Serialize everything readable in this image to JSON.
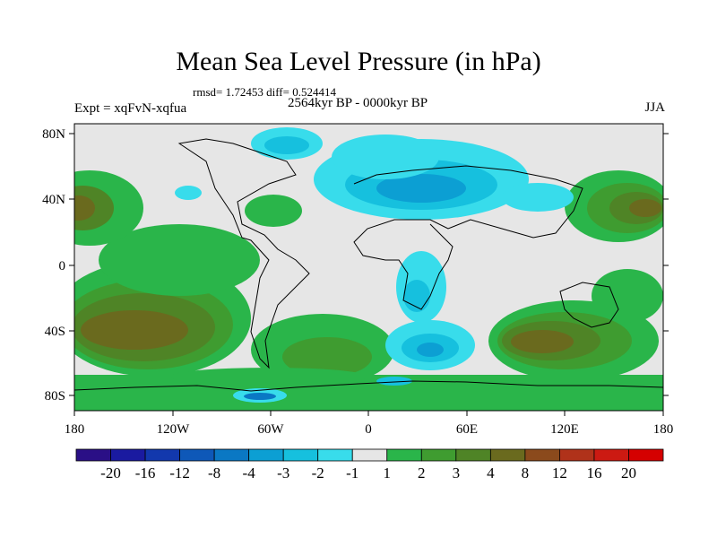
{
  "title": "Mean Sea Level Pressure (in hPa)",
  "stats": "rmsd= 1.72453 diff= 0.524414",
  "period": "2564kyr BP - 0000kyr BP",
  "experiment": "Expt = xqFvN-xqfua",
  "season": "JJA",
  "lat_ticks": [
    "80N",
    "40N",
    "0",
    "40S",
    "80S"
  ],
  "lon_ticks": [
    "180",
    "120W",
    "60W",
    "0",
    "60E",
    "120E",
    "180"
  ],
  "colorbar": {
    "labels": [
      "-20",
      "-16",
      "-12",
      "-8",
      "-4",
      "-3",
      "-2",
      "-1",
      "1",
      "2",
      "3",
      "4",
      "8",
      "12",
      "16",
      "20"
    ],
    "colors": [
      "#2a0f86",
      "#1a1aa0",
      "#1238ad",
      "#0e58b8",
      "#0a78c4",
      "#0c9fd3",
      "#16c0de",
      "#38dceb",
      "#e6e6e6",
      "#2ab54a",
      "#3f9c30",
      "#4f8426",
      "#6a6a1e",
      "#8b4a1c",
      "#b0321a",
      "#cc1a12",
      "#d50000"
    ]
  },
  "colors": {
    "land_line": "#000000",
    "neutral": "#e6e6e6"
  }
}
